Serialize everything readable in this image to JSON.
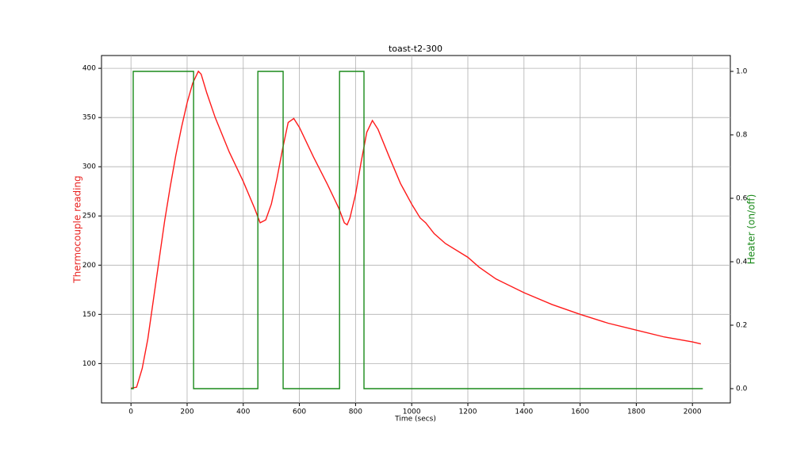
{
  "chart_data": {
    "type": "line",
    "title": "toast-t2-300",
    "x_label": "Time (secs)",
    "y_label": "Thermocouple reading",
    "y2_label": "Heater (on/off)",
    "y_label_color": "#e8201e",
    "y2_label_color": "#1a8a1a",
    "xlim": [
      -105,
      2135
    ],
    "xticks": [
      0,
      200,
      400,
      600,
      800,
      1000,
      1200,
      1400,
      1600,
      1800,
      2000
    ],
    "ylim": [
      60,
      413
    ],
    "yticks": [
      100,
      150,
      200,
      250,
      300,
      350,
      400
    ],
    "y2lim": [
      -0.045,
      1.05
    ],
    "y2ticks": [
      {
        "value": 0,
        "label": "0.0"
      },
      {
        "value": 0.2,
        "label": "0.2"
      },
      {
        "value": 0.4,
        "label": "0.4"
      },
      {
        "value": 0.6,
        "label": "0.6"
      },
      {
        "value": 0.8,
        "label": "0.8"
      },
      {
        "value": 1,
        "label": "1.0"
      }
    ],
    "grid": true,
    "series": [
      {
        "color": "#ff1a1a",
        "axis": "y",
        "x": [
          0,
          20,
          40,
          60,
          80,
          100,
          120,
          140,
          160,
          180,
          200,
          220,
          240,
          250,
          270,
          300,
          350,
          400,
          440,
          460,
          480,
          500,
          520,
          540,
          560,
          580,
          600,
          650,
          700,
          740,
          760,
          770,
          780,
          800,
          820,
          840,
          860,
          880,
          920,
          960,
          1000,
          1030,
          1050,
          1080,
          1120,
          1200,
          1240,
          1300,
          1400,
          1500,
          1600,
          1700,
          1800,
          1900,
          2000,
          2030
        ],
        "values": [
          75,
          76,
          95,
          125,
          165,
          205,
          245,
          280,
          312,
          340,
          365,
          385,
          397,
          394,
          375,
          350,
          315,
          285,
          258,
          243,
          246,
          262,
          288,
          318,
          345,
          349,
          340,
          310,
          282,
          258,
          243,
          241,
          248,
          272,
          305,
          335,
          347,
          338,
          310,
          283,
          262,
          248,
          243,
          232,
          222,
          208,
          198,
          186,
          172,
          160,
          150,
          141,
          134,
          127,
          122,
          120
        ]
      },
      {
        "color": "#1a8a1a",
        "axis": "y2",
        "x": [
          0,
          8,
          8,
          223,
          223,
          452,
          452,
          542,
          542,
          743,
          743,
          830,
          830,
          2037
        ],
        "values": [
          0,
          0,
          1,
          1,
          0,
          0,
          1,
          1,
          0,
          0,
          1,
          1,
          0,
          0
        ]
      }
    ]
  }
}
